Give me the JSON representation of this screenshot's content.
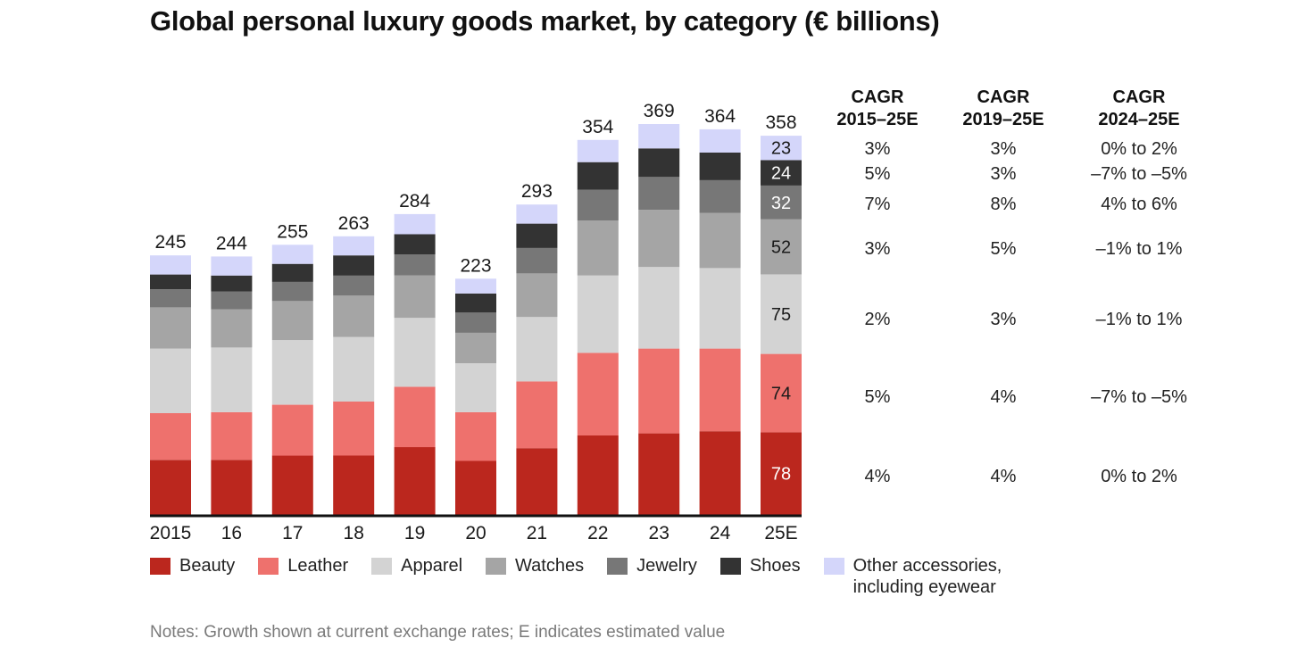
{
  "title": "Global personal luxury goods market, by category (€ billions)",
  "notes": "Notes: Growth shown at current exchange rates; E indicates estimated value",
  "colors": {
    "Beauty": "#bb271e",
    "Leather": "#ee716d",
    "Apparel": "#d3d3d3",
    "Watches": "#a5a5a5",
    "Jewelry": "#777777",
    "Shoes": "#333333",
    "Other accessories, including eyewear": "#d4d6fa"
  },
  "legend": [
    {
      "label": "Beauty",
      "key": "Beauty"
    },
    {
      "label": "Leather",
      "key": "Leather"
    },
    {
      "label": "Apparel",
      "key": "Apparel"
    },
    {
      "label": "Watches",
      "key": "Watches"
    },
    {
      "label": "Jewelry",
      "key": "Jewelry"
    },
    {
      "label": "Shoes",
      "key": "Shoes"
    },
    {
      "label": "Other accessories,\nincluding eyewear",
      "line1": "Other accessories,",
      "line2": "including eyewear",
      "key": "Other accessories, including eyewear"
    }
  ],
  "cagr_table": {
    "headers": [
      {
        "line1": "CAGR",
        "line2": "2015–25E"
      },
      {
        "line1": "CAGR",
        "line2": "2019–25E"
      },
      {
        "line1": "CAGR",
        "line2": "2024–25E"
      }
    ],
    "rows": [
      {
        "category": "Other accessories, including eyewear",
        "values": [
          "3%",
          "3%",
          "0% to 2%"
        ]
      },
      {
        "category": "Shoes",
        "values": [
          "5%",
          "3%",
          "–7% to –5%"
        ]
      },
      {
        "category": "Jewelry",
        "values": [
          "7%",
          "8%",
          "4% to 6%"
        ]
      },
      {
        "category": "Watches",
        "values": [
          "3%",
          "5%",
          "–1% to 1%"
        ]
      },
      {
        "category": "Apparel",
        "values": [
          "2%",
          "3%",
          "–1% to 1%"
        ]
      },
      {
        "category": "Leather",
        "values": [
          "5%",
          "4%",
          "–7% to –5%"
        ]
      },
      {
        "category": "Beauty",
        "values": [
          "4%",
          "4%",
          "0% to 2%"
        ]
      }
    ]
  },
  "chart_data": {
    "type": "bar",
    "stacked": true,
    "title": "Global personal luxury goods market, by category (€ billions)",
    "xlabel": "",
    "ylabel": "€ billions",
    "ylim": [
      0,
      380
    ],
    "grid": false,
    "legend_position": "bottom",
    "categories": [
      "2015",
      "16",
      "17",
      "18",
      "19",
      "20",
      "21",
      "22",
      "23",
      "24",
      "25E"
    ],
    "totals": [
      245,
      244,
      255,
      263,
      284,
      223,
      293,
      354,
      369,
      364,
      358
    ],
    "series": [
      {
        "name": "Beauty",
        "values": [
          52,
          52,
          56,
          56,
          64,
          51,
          63,
          75,
          77,
          79,
          78
        ]
      },
      {
        "name": "Leather",
        "values": [
          44,
          45,
          48,
          51,
          57,
          46,
          63,
          78,
          80,
          78,
          74
        ]
      },
      {
        "name": "Apparel",
        "values": [
          61,
          61,
          61,
          61,
          65,
          46,
          61,
          73,
          77,
          76,
          75
        ]
      },
      {
        "name": "Watches",
        "values": [
          39,
          36,
          37,
          39,
          40,
          29,
          41,
          52,
          54,
          52,
          52
        ]
      },
      {
        "name": "Jewelry",
        "values": [
          17,
          17,
          18,
          19,
          20,
          19,
          24,
          29,
          31,
          31,
          32
        ]
      },
      {
        "name": "Shoes",
        "values": [
          14,
          15,
          17,
          19,
          19,
          18,
          23,
          26,
          27,
          26,
          24
        ]
      },
      {
        "name": "Other accessories, including eyewear",
        "values": [
          18,
          18,
          18,
          18,
          19,
          14,
          18,
          21,
          23,
          22,
          23
        ]
      }
    ],
    "segment_labels_shown_for": "25E",
    "segment_labels": {
      "Beauty": "78",
      "Leather": "74",
      "Apparel": "75",
      "Watches": "52",
      "Jewelry": "32",
      "Shoes": "24",
      "Other accessories, including eyewear": "23"
    }
  }
}
